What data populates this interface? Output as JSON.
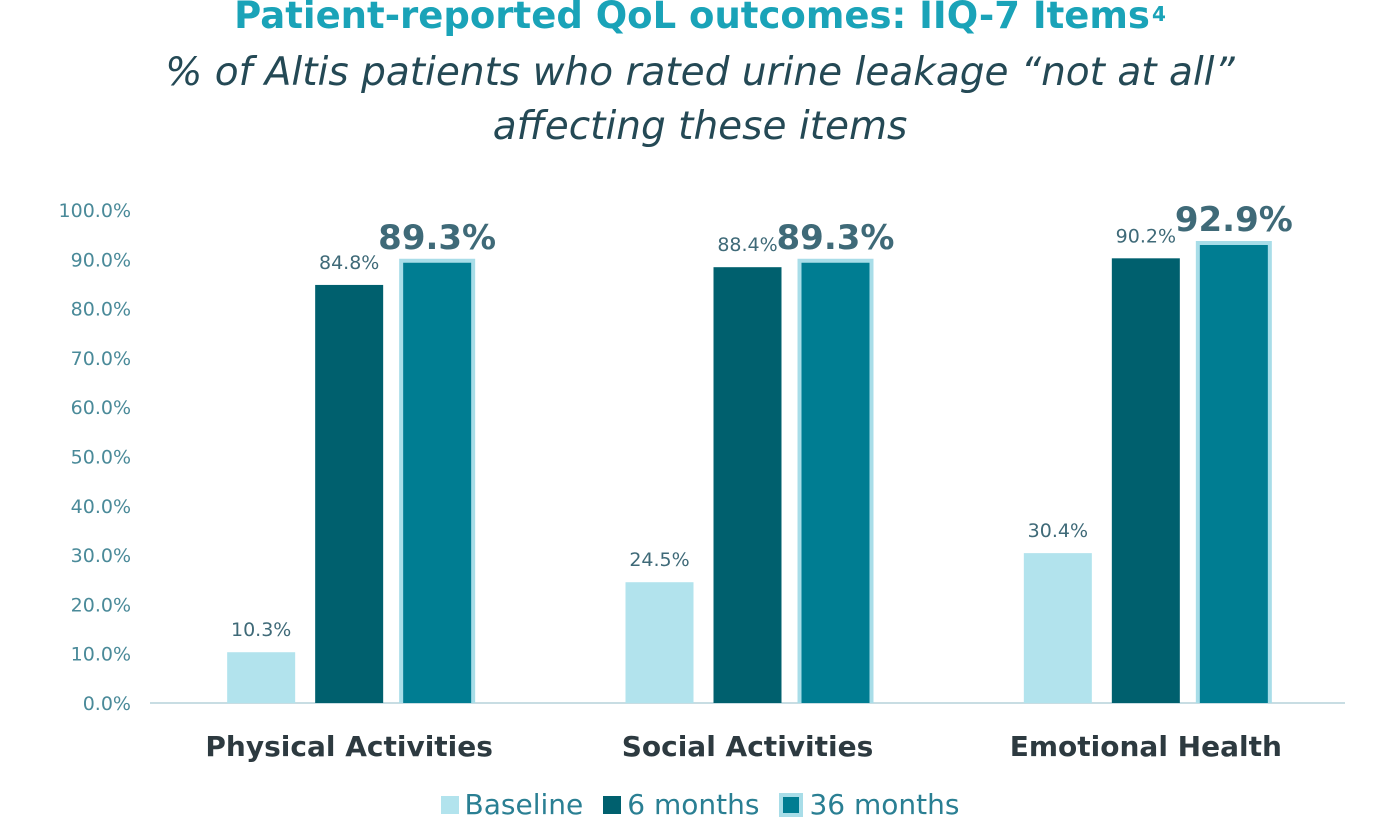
{
  "title": "Patient-reported QoL outcomes: IIQ-7 Items",
  "title_superscript": "4",
  "subtitle_line1": "% of Altis patients who rated urine leakage “not at all”",
  "subtitle_line2": "affecting these items",
  "colors": {
    "baseline": "#b2e3ed",
    "six_months": "#00606e",
    "thirty_six_months": "#007d92",
    "highlight_border": "#a8dde8",
    "axis_line": "#c8dde3"
  },
  "chart_data": {
    "type": "bar",
    "categories": [
      "Physical Activities",
      "Social Activities",
      "Emotional Health"
    ],
    "series": [
      {
        "name": "Baseline",
        "values": [
          10.3,
          24.5,
          30.4
        ],
        "labels": [
          "10.3%",
          "24.5%",
          "30.4%"
        ]
      },
      {
        "name": "6 months",
        "values": [
          84.8,
          88.4,
          90.2
        ],
        "labels": [
          "84.8%",
          "88.4%",
          "90.2%"
        ]
      },
      {
        "name": "36 months",
        "values": [
          89.3,
          89.3,
          92.9
        ],
        "labels": [
          "89.3%",
          "89.3%",
          "92.9%"
        ]
      }
    ],
    "ylim": [
      0,
      100
    ],
    "yticks": [
      "0.0%",
      "10.0%",
      "20.0%",
      "30.0%",
      "40.0%",
      "50.0%",
      "60.0%",
      "70.0%",
      "80.0%",
      "90.0%",
      "100.0%"
    ],
    "grid": false,
    "legend_position": "bottom",
    "highlighted_series": "36 months"
  }
}
